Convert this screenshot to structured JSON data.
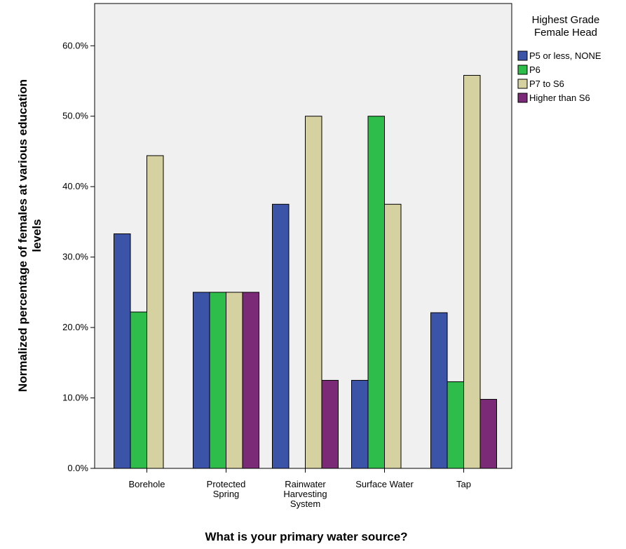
{
  "chart_data": {
    "type": "bar",
    "categories": [
      [
        "Borehole"
      ],
      [
        "Protected",
        "Spring"
      ],
      [
        "Rainwater",
        "Harvesting",
        "System"
      ],
      [
        "Surface Water"
      ],
      [
        "Tap"
      ]
    ],
    "series": [
      {
        "name": "P5 or less, NONE",
        "color": "#3b54a8",
        "values": [
          33.3,
          25.0,
          37.5,
          12.5,
          22.1
        ]
      },
      {
        "name": "P6",
        "color": "#2ebd4a",
        "values": [
          22.2,
          25.0,
          0.0,
          50.0,
          12.3
        ]
      },
      {
        "name": "P7 to S6",
        "color": "#d6d1a0",
        "values": [
          44.4,
          25.0,
          50.0,
          37.5,
          55.8
        ]
      },
      {
        "name": "Higher than S6",
        "color": "#7b2a78",
        "values": [
          0.0,
          25.0,
          12.5,
          0.0,
          9.8
        ]
      }
    ],
    "xlabel": "What is your primary water source?",
    "ylabel": [
      "Normalized percentage of females at various education",
      "levels"
    ],
    "ylim": [
      0,
      66
    ],
    "yticks": [
      0,
      10,
      20,
      30,
      40,
      50,
      60
    ],
    "ytick_labels": [
      "0.0%",
      "10.0%",
      "20.0%",
      "30.0%",
      "40.0%",
      "50.0%",
      "60.0%"
    ],
    "legend_title": [
      "Highest Grade",
      "Female Head"
    ],
    "legend_position": "top-right",
    "grid": false,
    "plot_background": "#f0f0f0"
  }
}
